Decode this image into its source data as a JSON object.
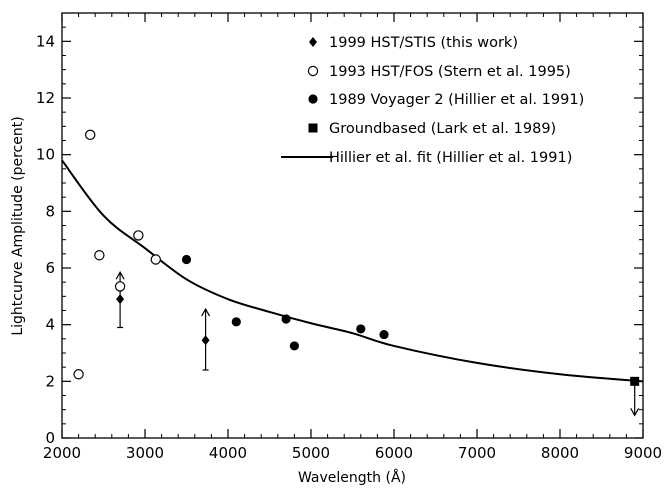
{
  "chart_data": {
    "type": "scatter",
    "xlabel": "Wavelength (Å)",
    "ylabel": "Lightcurve Amplitude (percent)",
    "xlim": [
      2000,
      9000
    ],
    "ylim": [
      0,
      15
    ],
    "x_ticks": [
      2000,
      3000,
      4000,
      5000,
      6000,
      7000,
      8000,
      9000
    ],
    "y_ticks": [
      0,
      2,
      4,
      6,
      8,
      10,
      12,
      14
    ],
    "grid": false,
    "legend_position": "top-right",
    "series": [
      {
        "name": "1999 HST/STIS (this work)",
        "marker": "filled-diamond",
        "points": [
          {
            "x": 2700,
            "y": 4.9,
            "err_low": 3.9,
            "err_high": 5.85
          },
          {
            "x": 3730,
            "y": 3.45,
            "err_low": 2.4,
            "err_high": 4.55
          }
        ]
      },
      {
        "name": "1993 HST/FOS (Stern et al. 1995)",
        "marker": "open-circle",
        "points": [
          {
            "x": 2200,
            "y": 2.25
          },
          {
            "x": 2340,
            "y": 10.7
          },
          {
            "x": 2450,
            "y": 6.45
          },
          {
            "x": 2700,
            "y": 5.35
          },
          {
            "x": 2920,
            "y": 7.15
          },
          {
            "x": 3130,
            "y": 6.3
          }
        ]
      },
      {
        "name": "1989 Voyager 2 (Hillier et al. 1991)",
        "marker": "filled-circle",
        "points": [
          {
            "x": 3500,
            "y": 6.3
          },
          {
            "x": 4100,
            "y": 4.1
          },
          {
            "x": 4700,
            "y": 4.2
          },
          {
            "x": 4800,
            "y": 3.25
          },
          {
            "x": 5600,
            "y": 3.85
          },
          {
            "x": 5880,
            "y": 3.65
          }
        ]
      },
      {
        "name": "Groundbased (Lark et al. 1989)",
        "marker": "filled-square",
        "points": [
          {
            "x": 8900,
            "y": 2.0,
            "upper_limit": true
          }
        ]
      },
      {
        "name": "Hillier et al. fit (Hillier et al. 1991)",
        "marker": "line",
        "curve": [
          {
            "x": 2000,
            "y": 9.8
          },
          {
            "x": 2500,
            "y": 7.85
          },
          {
            "x": 3000,
            "y": 6.7
          },
          {
            "x": 3500,
            "y": 5.6
          },
          {
            "x": 4000,
            "y": 4.9
          },
          {
            "x": 4500,
            "y": 4.45
          },
          {
            "x": 5000,
            "y": 4.05
          },
          {
            "x": 5500,
            "y": 3.7
          },
          {
            "x": 6000,
            "y": 3.25
          },
          {
            "x": 7000,
            "y": 2.65
          },
          {
            "x": 8000,
            "y": 2.25
          },
          {
            "x": 9000,
            "y": 2.0
          }
        ]
      }
    ]
  }
}
